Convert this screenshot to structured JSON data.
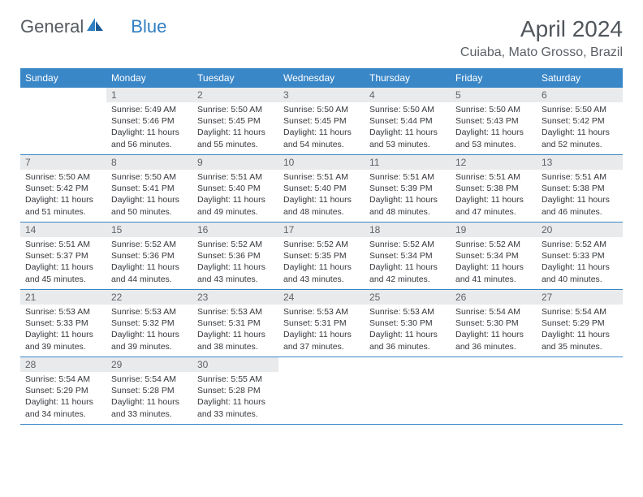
{
  "logo": {
    "text1": "General",
    "text2": "Blue"
  },
  "title": "April 2024",
  "location": "Cuiaba, Mato Grosso, Brazil",
  "colors": {
    "header_bg": "#3a87c8",
    "header_fg": "#ffffff",
    "daynum_bg": "#e9eaeb",
    "daynum_fg": "#606268",
    "text": "#35383d",
    "border": "#3a87c8"
  },
  "daynames": [
    "Sunday",
    "Monday",
    "Tuesday",
    "Wednesday",
    "Thursday",
    "Friday",
    "Saturday"
  ],
  "weeks": [
    [
      null,
      {
        "n": "1",
        "sr": "Sunrise: 5:49 AM",
        "ss": "Sunset: 5:46 PM",
        "d1": "Daylight: 11 hours",
        "d2": "and 56 minutes."
      },
      {
        "n": "2",
        "sr": "Sunrise: 5:50 AM",
        "ss": "Sunset: 5:45 PM",
        "d1": "Daylight: 11 hours",
        "d2": "and 55 minutes."
      },
      {
        "n": "3",
        "sr": "Sunrise: 5:50 AM",
        "ss": "Sunset: 5:45 PM",
        "d1": "Daylight: 11 hours",
        "d2": "and 54 minutes."
      },
      {
        "n": "4",
        "sr": "Sunrise: 5:50 AM",
        "ss": "Sunset: 5:44 PM",
        "d1": "Daylight: 11 hours",
        "d2": "and 53 minutes."
      },
      {
        "n": "5",
        "sr": "Sunrise: 5:50 AM",
        "ss": "Sunset: 5:43 PM",
        "d1": "Daylight: 11 hours",
        "d2": "and 53 minutes."
      },
      {
        "n": "6",
        "sr": "Sunrise: 5:50 AM",
        "ss": "Sunset: 5:42 PM",
        "d1": "Daylight: 11 hours",
        "d2": "and 52 minutes."
      }
    ],
    [
      {
        "n": "7",
        "sr": "Sunrise: 5:50 AM",
        "ss": "Sunset: 5:42 PM",
        "d1": "Daylight: 11 hours",
        "d2": "and 51 minutes."
      },
      {
        "n": "8",
        "sr": "Sunrise: 5:50 AM",
        "ss": "Sunset: 5:41 PM",
        "d1": "Daylight: 11 hours",
        "d2": "and 50 minutes."
      },
      {
        "n": "9",
        "sr": "Sunrise: 5:51 AM",
        "ss": "Sunset: 5:40 PM",
        "d1": "Daylight: 11 hours",
        "d2": "and 49 minutes."
      },
      {
        "n": "10",
        "sr": "Sunrise: 5:51 AM",
        "ss": "Sunset: 5:40 PM",
        "d1": "Daylight: 11 hours",
        "d2": "and 48 minutes."
      },
      {
        "n": "11",
        "sr": "Sunrise: 5:51 AM",
        "ss": "Sunset: 5:39 PM",
        "d1": "Daylight: 11 hours",
        "d2": "and 48 minutes."
      },
      {
        "n": "12",
        "sr": "Sunrise: 5:51 AM",
        "ss": "Sunset: 5:38 PM",
        "d1": "Daylight: 11 hours",
        "d2": "and 47 minutes."
      },
      {
        "n": "13",
        "sr": "Sunrise: 5:51 AM",
        "ss": "Sunset: 5:38 PM",
        "d1": "Daylight: 11 hours",
        "d2": "and 46 minutes."
      }
    ],
    [
      {
        "n": "14",
        "sr": "Sunrise: 5:51 AM",
        "ss": "Sunset: 5:37 PM",
        "d1": "Daylight: 11 hours",
        "d2": "and 45 minutes."
      },
      {
        "n": "15",
        "sr": "Sunrise: 5:52 AM",
        "ss": "Sunset: 5:36 PM",
        "d1": "Daylight: 11 hours",
        "d2": "and 44 minutes."
      },
      {
        "n": "16",
        "sr": "Sunrise: 5:52 AM",
        "ss": "Sunset: 5:36 PM",
        "d1": "Daylight: 11 hours",
        "d2": "and 43 minutes."
      },
      {
        "n": "17",
        "sr": "Sunrise: 5:52 AM",
        "ss": "Sunset: 5:35 PM",
        "d1": "Daylight: 11 hours",
        "d2": "and 43 minutes."
      },
      {
        "n": "18",
        "sr": "Sunrise: 5:52 AM",
        "ss": "Sunset: 5:34 PM",
        "d1": "Daylight: 11 hours",
        "d2": "and 42 minutes."
      },
      {
        "n": "19",
        "sr": "Sunrise: 5:52 AM",
        "ss": "Sunset: 5:34 PM",
        "d1": "Daylight: 11 hours",
        "d2": "and 41 minutes."
      },
      {
        "n": "20",
        "sr": "Sunrise: 5:52 AM",
        "ss": "Sunset: 5:33 PM",
        "d1": "Daylight: 11 hours",
        "d2": "and 40 minutes."
      }
    ],
    [
      {
        "n": "21",
        "sr": "Sunrise: 5:53 AM",
        "ss": "Sunset: 5:33 PM",
        "d1": "Daylight: 11 hours",
        "d2": "and 39 minutes."
      },
      {
        "n": "22",
        "sr": "Sunrise: 5:53 AM",
        "ss": "Sunset: 5:32 PM",
        "d1": "Daylight: 11 hours",
        "d2": "and 39 minutes."
      },
      {
        "n": "23",
        "sr": "Sunrise: 5:53 AM",
        "ss": "Sunset: 5:31 PM",
        "d1": "Daylight: 11 hours",
        "d2": "and 38 minutes."
      },
      {
        "n": "24",
        "sr": "Sunrise: 5:53 AM",
        "ss": "Sunset: 5:31 PM",
        "d1": "Daylight: 11 hours",
        "d2": "and 37 minutes."
      },
      {
        "n": "25",
        "sr": "Sunrise: 5:53 AM",
        "ss": "Sunset: 5:30 PM",
        "d1": "Daylight: 11 hours",
        "d2": "and 36 minutes."
      },
      {
        "n": "26",
        "sr": "Sunrise: 5:54 AM",
        "ss": "Sunset: 5:30 PM",
        "d1": "Daylight: 11 hours",
        "d2": "and 36 minutes."
      },
      {
        "n": "27",
        "sr": "Sunrise: 5:54 AM",
        "ss": "Sunset: 5:29 PM",
        "d1": "Daylight: 11 hours",
        "d2": "and 35 minutes."
      }
    ],
    [
      {
        "n": "28",
        "sr": "Sunrise: 5:54 AM",
        "ss": "Sunset: 5:29 PM",
        "d1": "Daylight: 11 hours",
        "d2": "and 34 minutes."
      },
      {
        "n": "29",
        "sr": "Sunrise: 5:54 AM",
        "ss": "Sunset: 5:28 PM",
        "d1": "Daylight: 11 hours",
        "d2": "and 33 minutes."
      },
      {
        "n": "30",
        "sr": "Sunrise: 5:55 AM",
        "ss": "Sunset: 5:28 PM",
        "d1": "Daylight: 11 hours",
        "d2": "and 33 minutes."
      },
      null,
      null,
      null,
      null
    ]
  ]
}
